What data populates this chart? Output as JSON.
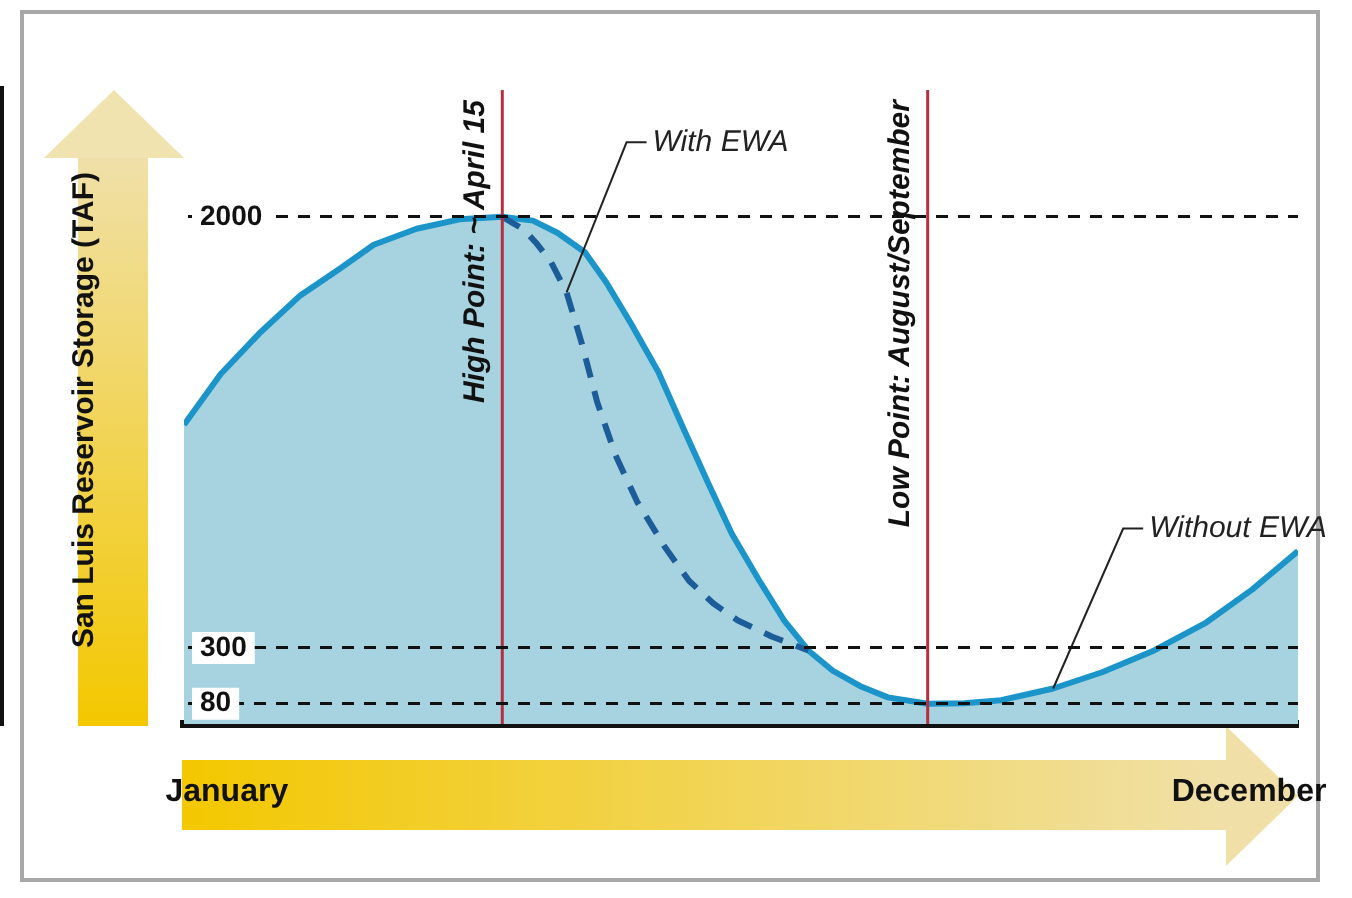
{
  "chart_data": {
    "type": "area",
    "ylabel": "San Luis Reservoir Storage (TAF)",
    "xlim": [
      "--01-01",
      "--12-31"
    ],
    "xticks": [
      {
        "value": "--01-15",
        "label": "January"
      },
      {
        "value": "--12-15",
        "label": "December"
      }
    ],
    "ylim": [
      0,
      2500
    ],
    "yticks": [
      80,
      300,
      2000
    ],
    "grid": "y",
    "legend": false,
    "ref_lines": [
      {
        "axis": "x",
        "value": "--04-15",
        "label": "High Point: ~ April 15",
        "color": "#b5303f"
      },
      {
        "axis": "x",
        "value": "--09-01",
        "label": "Low Point: August/September",
        "color": "#b5303f"
      }
    ],
    "series": [
      {
        "name": "Without EWA",
        "type": "area",
        "color": "#1b95c9",
        "x": [
          "--01-01",
          "--01-13",
          "--01-26",
          "--02-08",
          "--02-21",
          "--03-04",
          "--03-18",
          "--04-01",
          "--04-15",
          "--04-25",
          "--05-03",
          "--05-12",
          "--05-19",
          "--05-27",
          "--06-05",
          "--06-13",
          "--06-21",
          "--06-29",
          "--07-08",
          "--07-16",
          "--07-24",
          "--08-01",
          "--08-10",
          "--08-19",
          "--09-01",
          "--09-13",
          "--09-25",
          "--10-12",
          "--10-28",
          "--11-14",
          "--12-01",
          "--12-16",
          "--12-31"
        ],
        "values": [
          1180,
          1380,
          1545,
          1690,
          1796,
          1890,
          1953,
          1990,
          2000,
          1985,
          1937,
          1860,
          1741,
          1580,
          1388,
          1170,
          957,
          750,
          565,
          410,
          290,
          210,
          149,
          105,
          80,
          82,
          94,
          140,
          204,
          290,
          400,
          530,
          682
        ]
      },
      {
        "name": "With EWA",
        "type": "line",
        "line_style": "dashed",
        "color": "#1c5c98",
        "x": [
          "--04-15",
          "--04-22",
          "--04-26",
          "--05-01",
          "--05-06",
          "--05-11",
          "--05-16",
          "--05-22",
          "--05-29",
          "--06-07",
          "--06-15",
          "--06-23",
          "--07-01",
          "--07-12",
          "--07-24"
        ],
        "values": [
          2000,
          1950,
          1898,
          1820,
          1702,
          1500,
          1270,
          1060,
          878,
          700,
          565,
          475,
          408,
          345,
          290
        ]
      }
    ]
  }
}
